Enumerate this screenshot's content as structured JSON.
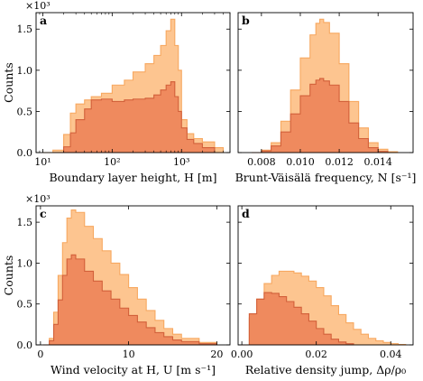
{
  "colors": {
    "light": "#fdc590",
    "light_edge": "#f7a860",
    "dark": "#ef8a5e",
    "dark_edge": "#d2603a"
  },
  "chart_data": [
    {
      "type": "area",
      "panel_label": "a",
      "xlabel": "Boundary layer height, H [m]",
      "ylabel": "Counts",
      "y_multiplier": "×10³",
      "xscale": "log",
      "xlim": [
        8,
        5000
      ],
      "ylim": [
        0,
        1700
      ],
      "xticks": [
        10,
        100,
        1000
      ],
      "xtick_labels": [
        "10¹",
        "10²",
        "10³"
      ],
      "yticks": [
        0,
        500,
        1000,
        1500
      ],
      "ytick_labels": [
        "0.0",
        "0.5",
        "1.0",
        "1.5"
      ],
      "series": [
        {
          "x": [
            10,
            14,
            20,
            25,
            30,
            40,
            50,
            70,
            100,
            150,
            200,
            300,
            400,
            500,
            600,
            700,
            800,
            900,
            1000,
            1200,
            1500,
            2000,
            3000,
            4000
          ],
          "values": [
            0,
            30,
            220,
            480,
            590,
            640,
            680,
            720,
            820,
            880,
            980,
            1080,
            1180,
            1300,
            1480,
            1620,
            1300,
            1000,
            400,
            230,
            170,
            130,
            60,
            0
          ]
        },
        {
          "x": [
            14,
            20,
            25,
            30,
            40,
            50,
            70,
            100,
            150,
            200,
            300,
            400,
            500,
            600,
            700,
            800,
            900,
            1000,
            1200,
            1500,
            2000,
            3000
          ],
          "values": [
            0,
            70,
            240,
            400,
            530,
            640,
            650,
            620,
            640,
            650,
            660,
            700,
            760,
            820,
            860,
            680,
            500,
            300,
            160,
            110,
            60,
            0
          ]
        }
      ]
    },
    {
      "type": "area",
      "panel_label": "b",
      "xlabel": "Brunt-Väisälä frequency, N [s⁻¹]",
      "xlim": [
        0.0068,
        0.0158
      ],
      "ylim": [
        0,
        1700
      ],
      "xticks": [
        0.008,
        0.01,
        0.012,
        0.014
      ],
      "xtick_labels": [
        "0.008",
        "0.010",
        "0.012",
        "0.014"
      ],
      "series": [
        {
          "x": [
            0.0075,
            0.008,
            0.0085,
            0.009,
            0.0095,
            0.01,
            0.0105,
            0.0108,
            0.011,
            0.0112,
            0.0115,
            0.012,
            0.0125,
            0.013,
            0.0135,
            0.014,
            0.0145,
            0.015
          ],
          "values": [
            0,
            30,
            120,
            380,
            760,
            1150,
            1430,
            1570,
            1620,
            1580,
            1450,
            1080,
            620,
            300,
            120,
            40,
            10,
            0
          ]
        },
        {
          "x": [
            0.0075,
            0.008,
            0.0085,
            0.009,
            0.0095,
            0.01,
            0.0105,
            0.0108,
            0.011,
            0.0112,
            0.0115,
            0.012,
            0.0125,
            0.013,
            0.0135,
            0.014,
            0.0145
          ],
          "values": [
            0,
            20,
            80,
            250,
            470,
            690,
            830,
            880,
            900,
            870,
            820,
            620,
            360,
            170,
            60,
            15,
            0
          ]
        }
      ]
    },
    {
      "type": "area",
      "panel_label": "c",
      "xlabel": "Wind velocity at H, U [m s⁻¹]",
      "ylabel": "Counts",
      "y_multiplier": "×10³",
      "xlim": [
        -0.5,
        21.5
      ],
      "ylim": [
        0,
        1700
      ],
      "xticks": [
        0,
        10,
        20
      ],
      "xtick_labels": [
        "0",
        "10",
        "20"
      ],
      "yticks": [
        0,
        500,
        1000,
        1500
      ],
      "ytick_labels": [
        "0.0",
        "0.5",
        "1.0",
        "1.5"
      ],
      "series": [
        {
          "x": [
            0.3,
            1,
            1.5,
            2,
            2.5,
            3,
            3.5,
            4,
            5,
            6,
            7,
            8,
            9,
            10,
            11,
            12,
            13,
            14,
            15,
            16,
            18,
            20
          ],
          "values": [
            0,
            80,
            400,
            850,
            1250,
            1550,
            1650,
            1620,
            1450,
            1300,
            1150,
            1000,
            860,
            700,
            560,
            420,
            300,
            200,
            130,
            80,
            30,
            0
          ]
        },
        {
          "x": [
            0.3,
            1,
            1.5,
            2,
            2.5,
            3,
            3.5,
            4,
            5,
            6,
            7,
            8,
            9,
            10,
            11,
            12,
            13,
            14,
            15,
            16,
            18,
            20
          ],
          "values": [
            0,
            50,
            250,
            550,
            850,
            1050,
            1100,
            1050,
            900,
            780,
            660,
            560,
            450,
            360,
            280,
            210,
            150,
            100,
            60,
            40,
            15,
            0
          ]
        }
      ]
    },
    {
      "type": "area",
      "panel_label": "d",
      "xlabel": "Relative density jump, Δρ/ρ₀",
      "xlim": [
        -0.001,
        0.046
      ],
      "ylim": [
        0,
        1700
      ],
      "xticks": [
        0.0,
        0.02,
        0.04
      ],
      "xtick_labels": [
        "0.00",
        "0.02",
        "0.04"
      ],
      "series": [
        {
          "x": [
            0,
            0.002,
            0.004,
            0.006,
            0.008,
            0.01,
            0.012,
            0.014,
            0.016,
            0.018,
            0.02,
            0.022,
            0.024,
            0.026,
            0.028,
            0.03,
            0.032,
            0.034,
            0.036,
            0.038,
            0.04,
            0.042,
            0.044
          ],
          "values": [
            0,
            330,
            560,
            750,
            850,
            900,
            900,
            880,
            840,
            780,
            700,
            600,
            480,
            370,
            270,
            190,
            130,
            80,
            50,
            30,
            15,
            5,
            0
          ]
        },
        {
          "x": [
            0,
            0.002,
            0.004,
            0.006,
            0.008,
            0.01,
            0.012,
            0.014,
            0.016,
            0.018,
            0.02,
            0.022,
            0.024,
            0.026,
            0.028,
            0.03
          ],
          "values": [
            0,
            380,
            560,
            640,
            630,
            590,
            530,
            460,
            380,
            290,
            200,
            130,
            70,
            35,
            15,
            0
          ]
        }
      ]
    }
  ]
}
